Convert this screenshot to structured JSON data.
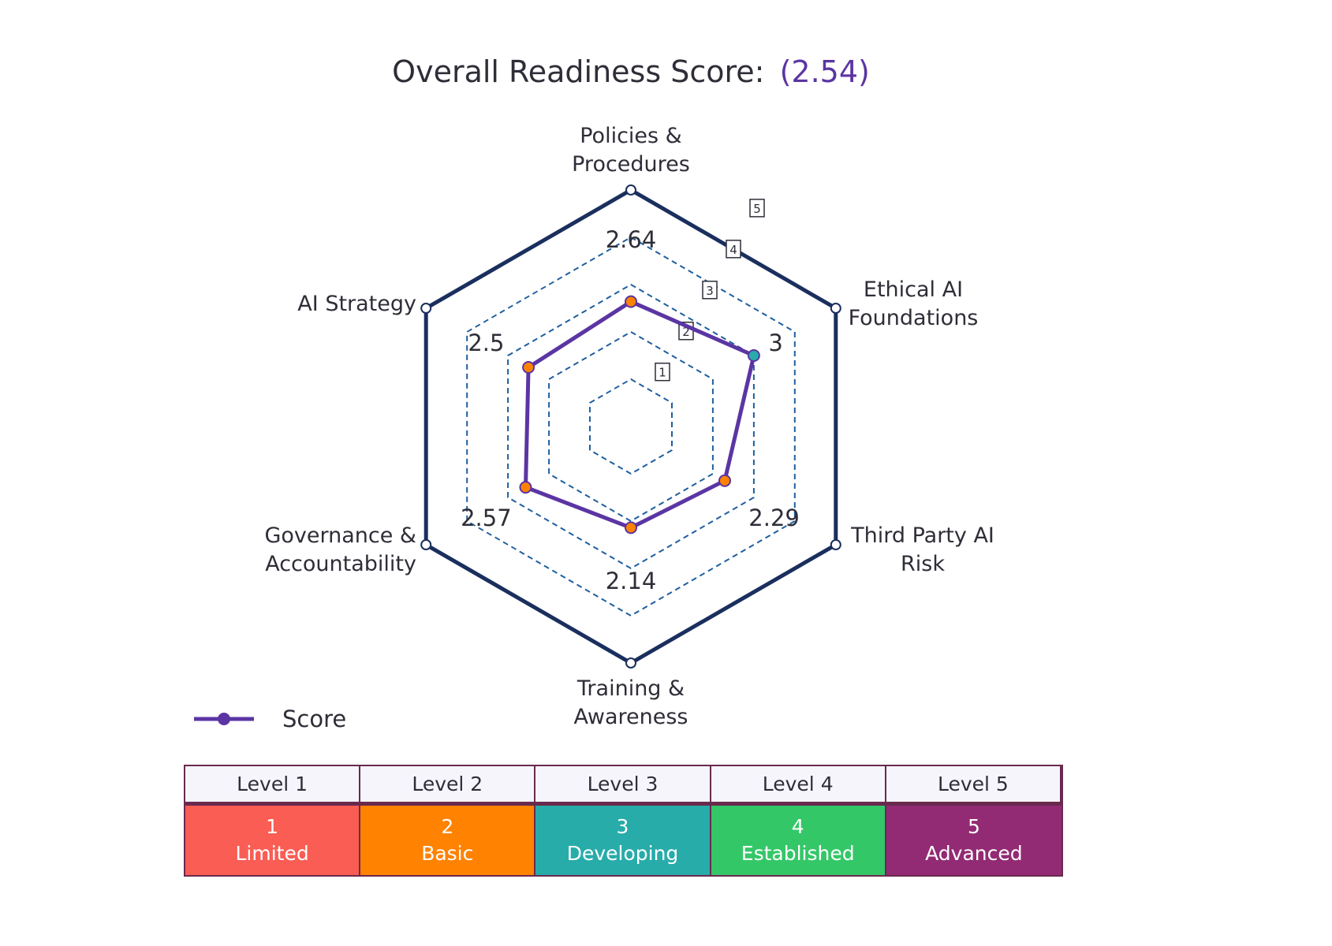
{
  "chart_data": {
    "type": "radar",
    "title": "Overall Readiness Score:",
    "overall_score": "(2.54)",
    "axes": [
      "Policies & Procedures",
      "Ethical AI Foundations",
      "Third Party AI Risk",
      "Training & Awareness",
      "Governance & Accountability",
      "AI Strategy"
    ],
    "axis_label_lines": [
      [
        "Policies &",
        "Procedures"
      ],
      [
        "Ethical AI",
        "Foundations"
      ],
      [
        "Third Party AI",
        "Risk"
      ],
      [
        "Training &",
        "Awareness"
      ],
      [
        "Governance &",
        "Accountability"
      ],
      [
        "AI Strategy"
      ]
    ],
    "series": [
      {
        "name": "Score",
        "values": [
          2.64,
          3,
          2.29,
          2.14,
          2.57,
          2.5
        ],
        "value_labels": [
          "2.64",
          "3",
          "2.29",
          "2.14",
          "2.57",
          "2.5"
        ],
        "color": "#5b35a3"
      }
    ],
    "radial_range": [
      0,
      5
    ],
    "radial_ticks": [
      "1",
      "2",
      "3",
      "4",
      "5"
    ],
    "point_colors": {
      "Limited": "#f95d54",
      "Basic": "#ff8200",
      "Developing": "#27acaa",
      "Established": "#34c768",
      "Advanced": "#922b73"
    },
    "grid_color": "#1f5fa0",
    "outer_color": "#1a2f5e",
    "legend_placement": "bottom-left"
  },
  "levels": [
    {
      "header": "Level 1",
      "number": "1",
      "name": "Limited",
      "color": "#f95d54"
    },
    {
      "header": "Level 2",
      "number": "2",
      "name": "Basic",
      "color": "#ff8200"
    },
    {
      "header": "Level 3",
      "number": "3",
      "name": "Developing",
      "color": "#27acaa"
    },
    {
      "header": "Level 4",
      "number": "4",
      "name": "Established",
      "color": "#34c768"
    },
    {
      "header": "Level 5",
      "number": "5",
      "name": "Advanced",
      "color": "#922b73"
    }
  ]
}
